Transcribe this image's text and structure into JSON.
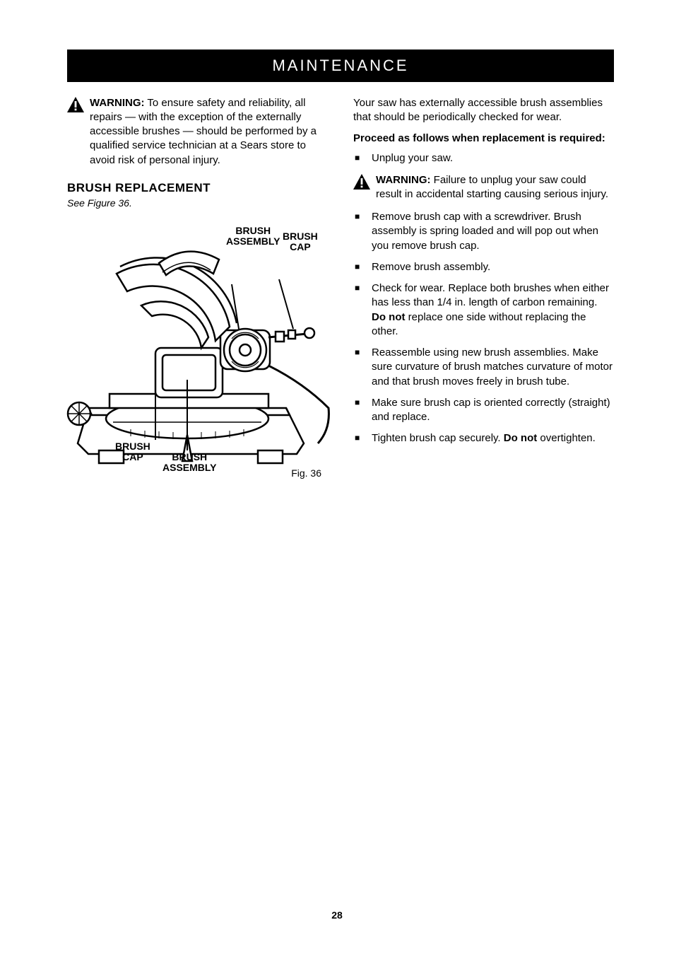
{
  "header": "MAINTENANCE",
  "page_number": "28",
  "left_column": {
    "warning": {
      "label": "WARNING:",
      "text": " To ensure safety and reliability, all repairs — with the exception of the externally accessible brushes — should be performed by a qualified service technician at a Sears store to avoid risk of personal injury."
    },
    "section_title": "BRUSH REPLACEMENT",
    "subtitle": "See Figure 36.",
    "figure": {
      "labels": {
        "brush_assembly_top": "BRUSH\nASSEMBLY",
        "brush_cap_top": "BRUSH\nCAP",
        "brush_cap_bottom": "BRUSH\nCAP",
        "brush_assembly_bottom": "BRUSH\nASSEMBLY"
      },
      "caption": "Fig. 36"
    }
  },
  "right_column": {
    "intro": "Your saw has externally accessible brush assemblies that should be periodically checked for wear.",
    "proc_heading": "Proceed as follows when replacement is required:",
    "step1": "Unplug your saw.",
    "warning": {
      "label": "WARNING:",
      "text": " Failure to unplug your saw could result in accidental starting causing serious injury."
    },
    "step2": "Remove brush cap with a screwdriver. Brush assembly is spring loaded and will pop out when you remove brush cap.",
    "step3": "Remove brush assembly.",
    "step4_a": "Check for wear. Replace both brushes when either has less than 1/4 in. length of carbon remaining. ",
    "step4_bold": "Do not",
    "step4_b": " replace one side without replacing the other.",
    "step5": "Reassemble using new brush assemblies. Make sure curvature of brush matches curvature of motor and that brush moves freely in brush tube.",
    "step6": "Make sure brush cap is oriented correctly (straight) and replace.",
    "step7_a": "Tighten brush cap securely. ",
    "step7_bold": "Do not",
    "step7_b": " overtighten."
  },
  "colors": {
    "black": "#000000",
    "white": "#ffffff"
  }
}
